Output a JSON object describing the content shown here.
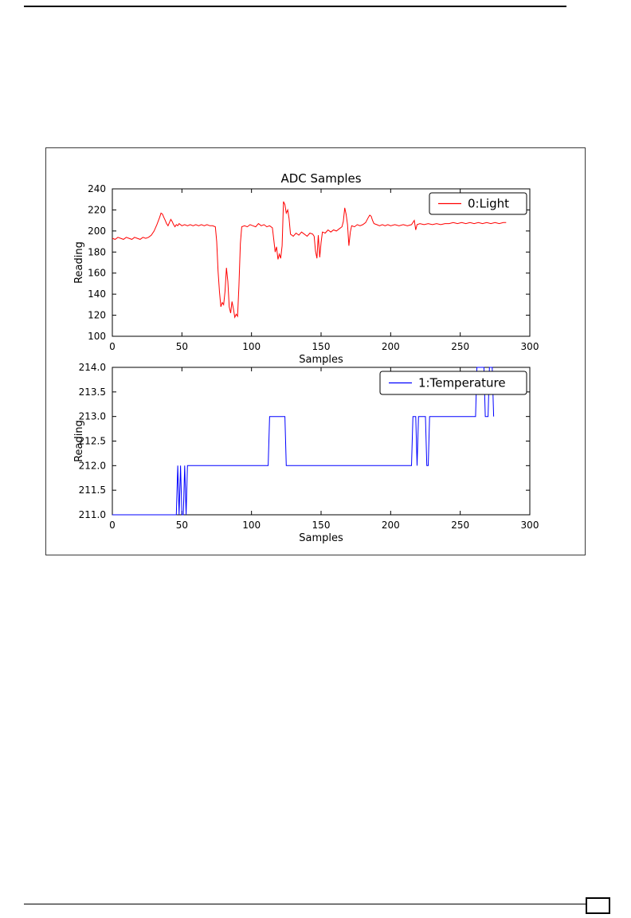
{
  "chart_data": [
    {
      "type": "line",
      "title": "ADC Samples",
      "xlabel": "Samples",
      "ylabel": "Reading",
      "xlim": [
        0,
        300
      ],
      "ylim": [
        100,
        240
      ],
      "xticks": [
        0,
        50,
        100,
        150,
        200,
        250,
        300
      ],
      "xtick_labels": [
        "0",
        "50",
        "100",
        "150",
        "200",
        "250",
        "300"
      ],
      "yticks": [
        100,
        120,
        140,
        160,
        180,
        200,
        220,
        240
      ],
      "ytick_labels": [
        "100",
        "120",
        "140",
        "160",
        "180",
        "200",
        "220",
        "240"
      ],
      "grid": false,
      "legend": {
        "label": "0:Light",
        "position": "upper right"
      },
      "series": [
        {
          "name": "0:Light",
          "color": "#ff0000",
          "points": [
            [
              0,
              193
            ],
            [
              2,
              192
            ],
            [
              4,
              194
            ],
            [
              6,
              193
            ],
            [
              8,
              192
            ],
            [
              10,
              194
            ],
            [
              12,
              193
            ],
            [
              14,
              192
            ],
            [
              16,
              194
            ],
            [
              18,
              193
            ],
            [
              20,
              192
            ],
            [
              22,
              194
            ],
            [
              24,
              193
            ],
            [
              26,
              194
            ],
            [
              28,
              196
            ],
            [
              30,
              200
            ],
            [
              32,
              206
            ],
            [
              34,
              213
            ],
            [
              35,
              217
            ],
            [
              36,
              216
            ],
            [
              37,
              213
            ],
            [
              38,
              210
            ],
            [
              39,
              207
            ],
            [
              40,
              205
            ],
            [
              41,
              208
            ],
            [
              42,
              211
            ],
            [
              43,
              209
            ],
            [
              44,
              206
            ],
            [
              45,
              204
            ],
            [
              46,
              206
            ],
            [
              47,
              205
            ],
            [
              48,
              207
            ],
            [
              50,
              205
            ],
            [
              52,
              206
            ],
            [
              54,
              205
            ],
            [
              56,
              206
            ],
            [
              58,
              205
            ],
            [
              60,
              206
            ],
            [
              62,
              205
            ],
            [
              64,
              206
            ],
            [
              66,
              205
            ],
            [
              68,
              206
            ],
            [
              70,
              205
            ],
            [
              72,
              205
            ],
            [
              74,
              204
            ],
            [
              75,
              190
            ],
            [
              76,
              162
            ],
            [
              77,
              142
            ],
            [
              78,
              128
            ],
            [
              79,
              132
            ],
            [
              80,
              130
            ],
            [
              81,
              143
            ],
            [
              82,
              165
            ],
            [
              83,
              152
            ],
            [
              84,
              128
            ],
            [
              85,
              122
            ],
            [
              86,
              133
            ],
            [
              87,
              126
            ],
            [
              88,
              118
            ],
            [
              89,
              121
            ],
            [
              90,
              119
            ],
            [
              91,
              148
            ],
            [
              92,
              188
            ],
            [
              93,
              204
            ],
            [
              95,
              205
            ],
            [
              97,
              204
            ],
            [
              99,
              206
            ],
            [
              101,
              205
            ],
            [
              103,
              204
            ],
            [
              105,
              207
            ],
            [
              107,
              205
            ],
            [
              109,
              206
            ],
            [
              111,
              204
            ],
            [
              113,
              205
            ],
            [
              115,
              203
            ],
            [
              116,
              192
            ],
            [
              117,
              180
            ],
            [
              118,
              185
            ],
            [
              119,
              173
            ],
            [
              120,
              178
            ],
            [
              121,
              174
            ],
            [
              122,
              186
            ],
            [
              123,
              228
            ],
            [
              124,
              225
            ],
            [
              125,
              217
            ],
            [
              126,
              220
            ],
            [
              127,
              212
            ],
            [
              128,
              197
            ],
            [
              130,
              195
            ],
            [
              132,
              198
            ],
            [
              134,
              196
            ],
            [
              136,
              199
            ],
            [
              138,
              197
            ],
            [
              140,
              195
            ],
            [
              142,
              198
            ],
            [
              144,
              197
            ],
            [
              145,
              195
            ],
            [
              146,
              181
            ],
            [
              147,
              174
            ],
            [
              148,
              196
            ],
            [
              149,
              175
            ],
            [
              150,
              189
            ],
            [
              151,
              199
            ],
            [
              153,
              198
            ],
            [
              155,
              201
            ],
            [
              157,
              199
            ],
            [
              159,
              201
            ],
            [
              161,
              200
            ],
            [
              163,
              202
            ],
            [
              165,
              204
            ],
            [
              166,
              209
            ],
            [
              167,
              222
            ],
            [
              168,
              216
            ],
            [
              169,
              206
            ],
            [
              170,
              186
            ],
            [
              171,
              199
            ],
            [
              172,
              205
            ],
            [
              174,
              204
            ],
            [
              176,
              206
            ],
            [
              178,
              205
            ],
            [
              180,
              206
            ],
            [
              182,
              208
            ],
            [
              184,
              213
            ],
            [
              185,
              215
            ],
            [
              186,
              214
            ],
            [
              187,
              210
            ],
            [
              188,
              207
            ],
            [
              190,
              206
            ],
            [
              192,
              205
            ],
            [
              194,
              206
            ],
            [
              196,
              205
            ],
            [
              198,
              206
            ],
            [
              200,
              205
            ],
            [
              203,
              206
            ],
            [
              206,
              205
            ],
            [
              209,
              206
            ],
            [
              212,
              205
            ],
            [
              215,
              206
            ],
            [
              217,
              210
            ],
            [
              218,
              201
            ],
            [
              219,
              206
            ],
            [
              221,
              207
            ],
            [
              224,
              206
            ],
            [
              227,
              207
            ],
            [
              230,
              206
            ],
            [
              233,
              207
            ],
            [
              236,
              206
            ],
            [
              239,
              207
            ],
            [
              242,
              207
            ],
            [
              245,
              208
            ],
            [
              248,
              207
            ],
            [
              251,
              208
            ],
            [
              254,
              207
            ],
            [
              257,
              208
            ],
            [
              260,
              207
            ],
            [
              263,
              208
            ],
            [
              266,
              207
            ],
            [
              269,
              208
            ],
            [
              272,
              207
            ],
            [
              275,
              208
            ],
            [
              278,
              207
            ],
            [
              281,
              208
            ],
            [
              283,
              208
            ]
          ]
        }
      ]
    },
    {
      "type": "line",
      "title": "",
      "xlabel": "Samples",
      "ylabel": "Reading",
      "xlim": [
        0,
        300
      ],
      "ylim": [
        211.0,
        214.0
      ],
      "xticks": [
        0,
        50,
        100,
        150,
        200,
        250,
        300
      ],
      "xtick_labels": [
        "0",
        "50",
        "100",
        "150",
        "200",
        "250",
        "300"
      ],
      "yticks": [
        211.0,
        211.5,
        212.0,
        212.5,
        213.0,
        213.5,
        214.0
      ],
      "ytick_labels": [
        "211.0",
        "211.5",
        "212.0",
        "212.5",
        "213.0",
        "213.5",
        "214.0"
      ],
      "grid": false,
      "legend": {
        "label": "1:Temperature",
        "position": "upper right"
      },
      "series": [
        {
          "name": "1:Temperature",
          "color": "#0000ff",
          "points": [
            [
              0,
              211
            ],
            [
              46,
              211
            ],
            [
              47,
              212
            ],
            [
              48,
              211
            ],
            [
              49,
              212
            ],
            [
              50,
              211
            ],
            [
              51,
              211
            ],
            [
              52,
              212
            ],
            [
              53,
              211
            ],
            [
              54,
              212
            ],
            [
              55,
              212
            ],
            [
              112,
              212
            ],
            [
              113,
              213
            ],
            [
              114,
              213
            ],
            [
              124,
              213
            ],
            [
              125,
              212
            ],
            [
              126,
              212
            ],
            [
              214,
              212
            ],
            [
              215,
              212
            ],
            [
              216,
              213
            ],
            [
              218,
              213
            ],
            [
              219,
              212
            ],
            [
              220,
              213
            ],
            [
              225,
              213
            ],
            [
              226,
              212
            ],
            [
              227,
              212
            ],
            [
              228,
              213
            ],
            [
              261,
              213
            ],
            [
              262,
              214
            ],
            [
              267,
              214
            ],
            [
              268,
              213
            ],
            [
              270,
              213
            ],
            [
              271,
              214
            ],
            [
              273,
              214
            ],
            [
              274,
              213
            ]
          ]
        }
      ]
    }
  ]
}
